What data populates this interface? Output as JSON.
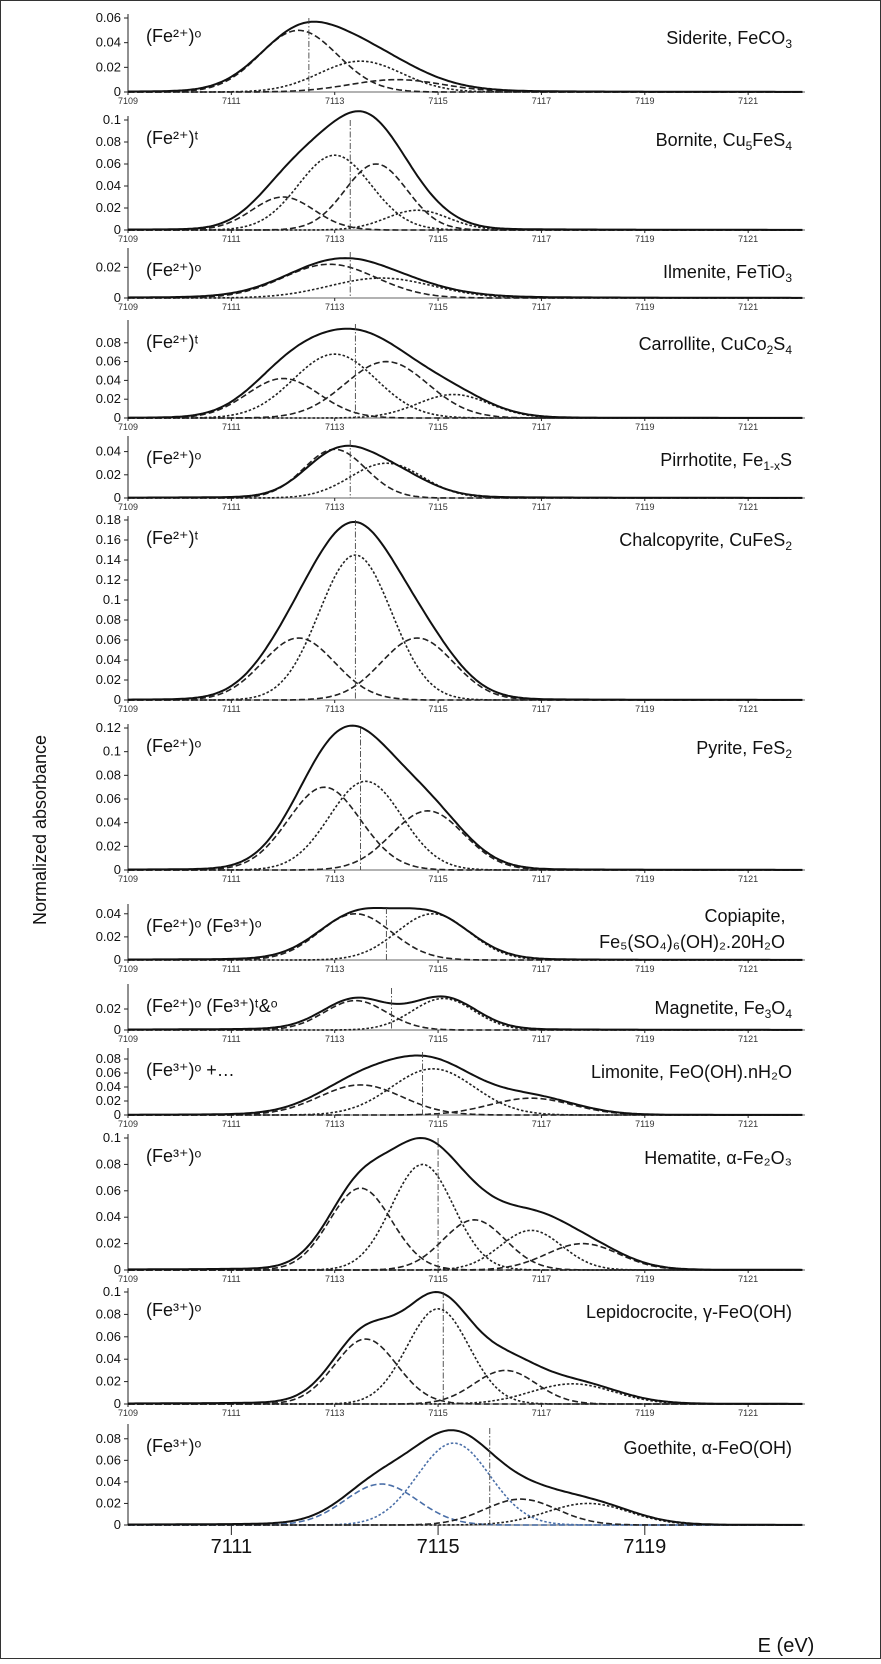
{
  "figure": {
    "ylabel": "Normalized absorbance",
    "xlabel": "E (eV)"
  },
  "chart_data": [
    {
      "type": "line",
      "name": "siderite",
      "mineral": "Siderite, FeCO",
      "mineral_subscript": "3",
      "site_label": "(Fe²⁺)ᵒ",
      "x_ticks": [
        7109,
        7111,
        7113,
        7115,
        7117,
        7119,
        7121
      ],
      "xlim": [
        7109,
        7122.1
      ],
      "y_ticks": [
        "0",
        "0.02",
        "0.04",
        "0.06"
      ],
      "ylim": [
        0,
        0.06
      ],
      "centroid_marker_ev": 7112.5,
      "total": {
        "center": 7112.4,
        "amp": 0.057
      },
      "components": [
        {
          "center": 7112.3,
          "sigma": 0.75,
          "amp": 0.05
        },
        {
          "center": 7113.5,
          "sigma": 0.8,
          "amp": 0.025
        },
        {
          "center": 7114.2,
          "sigma": 0.9,
          "amp": 0.01
        }
      ]
    },
    {
      "type": "line",
      "name": "bornite",
      "mineral": "Bornite, Cu",
      "mineral_subscript": "5",
      "mineral_suffix": "FeS",
      "mineral_subscript2": "4",
      "site_label": "(Fe²⁺)ᵗ",
      "x_ticks": [
        7109,
        7111,
        7113,
        7115,
        7117,
        7119,
        7121
      ],
      "xlim": [
        7109,
        7122.1
      ],
      "y_ticks": [
        "0",
        "0.02",
        "0.04",
        "0.06",
        "0.08",
        "0.1"
      ],
      "ylim": [
        0,
        0.1
      ],
      "centroid_marker_ev": 7113.3,
      "total": {
        "center": 7113.2,
        "amp": 0.108
      },
      "components": [
        {
          "center": 7112.0,
          "sigma": 0.6,
          "amp": 0.03
        },
        {
          "center": 7113.0,
          "sigma": 0.7,
          "amp": 0.068
        },
        {
          "center": 7113.8,
          "sigma": 0.6,
          "amp": 0.06
        },
        {
          "center": 7114.6,
          "sigma": 0.6,
          "amp": 0.018
        }
      ]
    },
    {
      "type": "line",
      "name": "ilmenite",
      "mineral": "Ilmenite,   FeTiO",
      "mineral_subscript": "3",
      "site_label": "(Fe²⁺)ᵒ",
      "x_ticks": [
        7109,
        7111,
        7113,
        7115,
        7117,
        7119,
        7121
      ],
      "xlim": [
        7109,
        7122.1
      ],
      "y_ticks": [
        "0",
        "0.02"
      ],
      "ylim": [
        0,
        0.03
      ],
      "centroid_marker_ev": 7113.3,
      "total": {
        "center": 7113.3,
        "amp": 0.026
      },
      "components": [
        {
          "center": 7112.9,
          "sigma": 0.9,
          "amp": 0.022
        },
        {
          "center": 7113.9,
          "sigma": 1.0,
          "amp": 0.013
        }
      ]
    },
    {
      "type": "line",
      "name": "carrollite",
      "mineral": "Carrollite, CuCo",
      "mineral_subscript": "2",
      "mineral_suffix": "S",
      "mineral_subscript2": "4",
      "site_label": "(Fe²⁺)ᵗ",
      "x_ticks": [
        7109,
        7111,
        7113,
        7115,
        7117,
        7119,
        7121
      ],
      "xlim": [
        7109,
        7122.1
      ],
      "y_ticks": [
        "0",
        "0.02",
        "0.04",
        "0.06",
        "0.08"
      ],
      "ylim": [
        0,
        0.1
      ],
      "centroid_marker_ev": 7113.4,
      "total": {
        "center": 7113.4,
        "amp": 0.095
      },
      "components": [
        {
          "center": 7112.0,
          "sigma": 0.7,
          "amp": 0.042
        },
        {
          "center": 7113.0,
          "sigma": 0.8,
          "amp": 0.068
        },
        {
          "center": 7114.0,
          "sigma": 0.8,
          "amp": 0.06
        },
        {
          "center": 7115.3,
          "sigma": 0.7,
          "amp": 0.025
        }
      ]
    },
    {
      "type": "line",
      "name": "pyrrhotite",
      "mineral": "Pirrhotite, Fe",
      "mineral_subscript": "1-x",
      "mineral_suffix": "S",
      "site_label": "(Fe²⁺)ᵒ",
      "x_ticks": [
        7109,
        7111,
        7113,
        7115,
        7117,
        7119,
        7121
      ],
      "xlim": [
        7109,
        7122.1
      ],
      "y_ticks": [
        "0",
        "0.02",
        "0.04"
      ],
      "ylim": [
        0,
        0.05
      ],
      "centroid_marker_ev": 7113.3,
      "total": {
        "center": 7113.3,
        "amp": 0.045
      },
      "components": [
        {
          "center": 7113.0,
          "sigma": 0.6,
          "amp": 0.042
        },
        {
          "center": 7114.0,
          "sigma": 0.7,
          "amp": 0.03
        }
      ]
    },
    {
      "type": "line",
      "name": "chalcopyrite",
      "mineral": "Chalcopyrite, CuFeS",
      "mineral_subscript": "2",
      "site_label": "(Fe²⁺)ᵗ",
      "x_ticks": [
        7109,
        7111,
        7113,
        7115,
        7117,
        7119,
        7121
      ],
      "xlim": [
        7109,
        7122.1
      ],
      "y_ticks": [
        "0",
        "0.02",
        "0.04",
        "0.06",
        "0.08",
        "0.1",
        "0.12",
        "0.14",
        "0.16",
        "0.18"
      ],
      "ylim": [
        0,
        0.18
      ],
      "centroid_marker_ev": 7113.4,
      "total": {
        "center": 7113.4,
        "amp": 0.178
      },
      "components": [
        {
          "center": 7112.3,
          "sigma": 0.7,
          "amp": 0.062
        },
        {
          "center": 7113.4,
          "sigma": 0.7,
          "amp": 0.145
        },
        {
          "center": 7114.6,
          "sigma": 0.7,
          "amp": 0.062
        }
      ]
    },
    {
      "type": "line",
      "name": "pyrite",
      "mineral": "Pyrite, FeS",
      "mineral_subscript": "2",
      "site_label": "(Fe²⁺)ᵒ",
      "x_ticks": [
        7109,
        7111,
        7113,
        7115,
        7117,
        7119,
        7121
      ],
      "xlim": [
        7109,
        7122.1
      ],
      "y_ticks": [
        "0",
        "0.02",
        "0.04",
        "0.06",
        "0.08",
        "0.1",
        "0.12"
      ],
      "ylim": [
        0,
        0.12
      ],
      "centroid_marker_ev": 7113.5,
      "total": {
        "center": 7113.5,
        "amp": 0.122
      },
      "components": [
        {
          "center": 7112.8,
          "sigma": 0.7,
          "amp": 0.07
        },
        {
          "center": 7113.6,
          "sigma": 0.7,
          "amp": 0.075
        },
        {
          "center": 7114.8,
          "sigma": 0.7,
          "amp": 0.05
        }
      ]
    },
    {
      "type": "line",
      "name": "copiapite",
      "mineral": "Copiapite,",
      "mineral_line2": "Fe₅(SO₄)₆(OH)₂.20H₂O",
      "site_label": "(Fe²⁺)ᵒ  (Fe³⁺)ᵒ",
      "x_ticks": [
        7109,
        7111,
        7113,
        7115,
        7117,
        7119,
        7121
      ],
      "xlim": [
        7109,
        7122.1
      ],
      "y_ticks": [
        "0",
        "0.02",
        "0.04"
      ],
      "ylim": [
        0,
        0.045
      ],
      "centroid_marker_ev": 7114.0,
      "total": {
        "two_peak": [
          7113.4,
          7114.9
        ],
        "amp": 0.045
      },
      "components": [
        {
          "center": 7113.4,
          "sigma": 0.7,
          "amp": 0.04
        },
        {
          "center": 7114.9,
          "sigma": 0.7,
          "amp": 0.04
        }
      ]
    },
    {
      "type": "line",
      "name": "magnetite",
      "mineral": "Magnetite, Fe",
      "mineral_subscript": "3",
      "mineral_suffix": "O",
      "mineral_subscript2": "4",
      "site_label": "(Fe²⁺)ᵒ  (Fe³⁺)ᵗ&ᵒ",
      "x_ticks": [
        7109,
        7111,
        7113,
        7115,
        7117,
        7119,
        7121
      ],
      "xlim": [
        7109,
        7122.1
      ],
      "y_ticks": [
        "0",
        "0.02"
      ],
      "ylim": [
        0,
        0.04
      ],
      "centroid_marker_ev": 7114.1,
      "total": {
        "two_peak": [
          7113.4,
          7115.1
        ],
        "amp": 0.032
      },
      "components": [
        {
          "center": 7113.4,
          "sigma": 0.6,
          "amp": 0.028
        },
        {
          "center": 7115.1,
          "sigma": 0.6,
          "amp": 0.03
        }
      ]
    },
    {
      "type": "line",
      "name": "limonite",
      "mineral": "Limonite, FeO(OH).nH₂O",
      "site_label": "(Fe³⁺)ᵒ  +…",
      "x_ticks": [
        7109,
        7111,
        7113,
        7115,
        7117,
        7119,
        7121
      ],
      "xlim": [
        7109,
        7122.1
      ],
      "y_ticks": [
        "0",
        "0.02",
        "0.04",
        "0.06",
        "0.08"
      ],
      "ylim": [
        0,
        0.09
      ],
      "centroid_marker_ev": 7114.7,
      "total": {
        "center": 7114.6,
        "amp": 0.085
      },
      "components": [
        {
          "center": 7113.5,
          "sigma": 0.8,
          "amp": 0.043
        },
        {
          "center": 7114.9,
          "sigma": 0.8,
          "amp": 0.066
        },
        {
          "center": 7116.8,
          "sigma": 0.8,
          "amp": 0.024
        }
      ]
    },
    {
      "type": "line",
      "name": "hematite",
      "mineral": "Hematite, α-Fe₂O₃",
      "site_label": "(Fe³⁺)ᵒ",
      "x_ticks": [
        7109,
        7111,
        7113,
        7115,
        7117,
        7119,
        7121
      ],
      "xlim": [
        7109,
        7122.1
      ],
      "y_ticks": [
        "0",
        "0.02",
        "0.04",
        "0.06",
        "0.08",
        "0.1"
      ],
      "ylim": [
        0,
        0.1
      ],
      "centroid_marker_ev": 7115.0,
      "total": {
        "center": 7114.7,
        "amp": 0.1
      },
      "components": [
        {
          "center": 7113.5,
          "sigma": 0.6,
          "amp": 0.062
        },
        {
          "center": 7114.7,
          "sigma": 0.6,
          "amp": 0.08
        },
        {
          "center": 7115.7,
          "sigma": 0.6,
          "amp": 0.038
        },
        {
          "center": 7116.8,
          "sigma": 0.6,
          "amp": 0.03
        },
        {
          "center": 7117.8,
          "sigma": 0.7,
          "amp": 0.02
        }
      ]
    },
    {
      "type": "line",
      "name": "lepidocrocite",
      "mineral": "Lepidocrocite, γ-FeO(OH)",
      "site_label": "(Fe³⁺)ᵒ",
      "x_ticks": [
        7109,
        7111,
        7113,
        7115,
        7117,
        7119,
        7121
      ],
      "xlim": [
        7109,
        7122.1
      ],
      "y_ticks": [
        "0",
        "0.02",
        "0.04",
        "0.06",
        "0.08",
        "0.1"
      ],
      "ylim": [
        0,
        0.1
      ],
      "centroid_marker_ev": 7115.1,
      "total": {
        "center": 7115.0,
        "amp": 0.1
      },
      "components": [
        {
          "center": 7113.6,
          "sigma": 0.6,
          "amp": 0.058
        },
        {
          "center": 7115.0,
          "sigma": 0.6,
          "amp": 0.085
        },
        {
          "center": 7116.3,
          "sigma": 0.6,
          "amp": 0.03
        },
        {
          "center": 7117.6,
          "sigma": 0.8,
          "amp": 0.018
        }
      ]
    },
    {
      "type": "line",
      "name": "goethite",
      "mineral": "Goethite, α-FeO(OH)",
      "site_label": "(Fe³⁺)ᵒ",
      "x_ticks": [
        7111,
        7115,
        7119
      ],
      "xlim": [
        7109,
        7122.1
      ],
      "y_ticks": [
        "0",
        "0.02",
        "0.04",
        "0.06",
        "0.08"
      ],
      "ylim": [
        0,
        0.09
      ],
      "centroid_marker_ev": 7116.0,
      "total": {
        "center": 7115.2,
        "amp": 0.088
      },
      "components": [
        {
          "center": 7113.9,
          "sigma": 0.7,
          "amp": 0.038
        },
        {
          "center": 7115.3,
          "sigma": 0.7,
          "amp": 0.076
        },
        {
          "center": 7116.6,
          "sigma": 0.7,
          "amp": 0.024
        },
        {
          "center": 7117.9,
          "sigma": 0.8,
          "amp": 0.02
        }
      ]
    }
  ]
}
